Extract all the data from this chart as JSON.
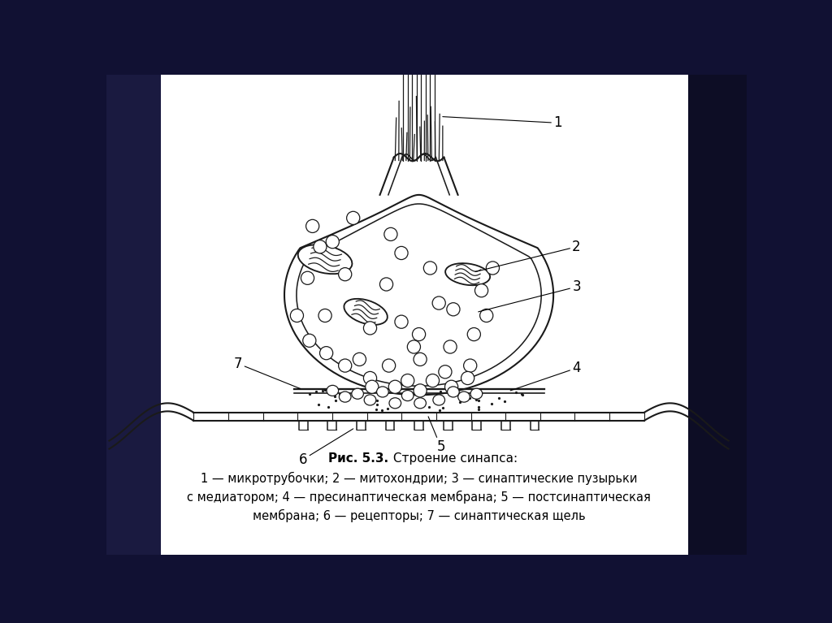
{
  "line_color": "#1a1a1a",
  "figure_title_bold": "Рис. 5.3.",
  "figure_title_normal": " Строение синапса:",
  "caption_lines": [
    "1 — микротрубочки; 2 — митохондрии; 3 — синаптические пузырьки",
    "с медиатором; 4 — пресинаптическая мембрана; 5 — постсинаптическая",
    "мембрана; 6 — рецепторы; 7 — синаптическая щель"
  ]
}
